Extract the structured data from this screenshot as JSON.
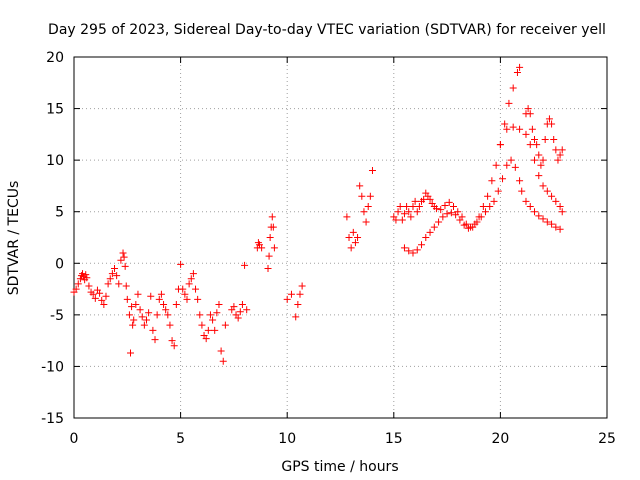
{
  "chart_data": {
    "type": "scatter",
    "title": "Day 295 of 2023, Sidereal Day-to-day VTEC variation (SDTVAR) for receiver yell",
    "xlabel": "GPS time / hours",
    "ylabel": "SDTVAR / TECUs",
    "xlim": [
      0,
      25
    ],
    "ylim": [
      -15,
      20
    ],
    "xticks": [
      0,
      5,
      10,
      15,
      20,
      25
    ],
    "yticks": [
      -15,
      -10,
      -5,
      0,
      5,
      10,
      15,
      20
    ],
    "grid": true,
    "marker": "plus",
    "color": "#ff0000",
    "series": [
      {
        "name": "SDTVAR",
        "x": [
          0.0,
          0.1,
          0.2,
          0.3,
          0.35,
          0.4,
          0.45,
          0.5,
          0.55,
          0.6,
          0.7,
          0.8,
          0.9,
          1.0,
          1.1,
          1.2,
          1.3,
          1.4,
          1.5,
          1.6,
          1.7,
          1.8,
          1.9,
          2.0,
          2.1,
          2.2,
          2.3,
          2.35,
          2.4,
          2.45,
          2.5,
          2.6,
          2.65,
          2.7,
          2.75,
          2.8,
          2.9,
          3.0,
          3.1,
          3.2,
          3.3,
          3.4,
          3.5,
          3.6,
          3.7,
          3.8,
          3.9,
          4.0,
          4.1,
          4.2,
          4.3,
          4.4,
          4.5,
          4.6,
          4.7,
          4.8,
          4.9,
          5.0,
          5.1,
          5.2,
          5.3,
          5.4,
          5.5,
          5.6,
          5.7,
          5.8,
          5.9,
          6.0,
          6.1,
          6.2,
          6.3,
          6.4,
          6.5,
          6.6,
          6.7,
          6.8,
          6.9,
          7.0,
          7.1,
          7.4,
          7.5,
          7.6,
          7.7,
          7.8,
          7.9,
          8.0,
          8.1,
          8.6,
          8.65,
          8.7,
          8.8,
          9.1,
          9.15,
          9.2,
          9.25,
          9.3,
          9.35,
          9.4,
          10.0,
          10.2,
          10.4,
          10.5,
          10.6,
          10.7,
          12.8,
          12.9,
          13.0,
          13.1,
          13.2,
          13.3,
          13.4,
          13.5,
          13.6,
          13.7,
          13.8,
          13.9,
          14.0,
          15.0,
          15.1,
          15.2,
          15.3,
          15.4,
          15.5,
          15.6,
          15.7,
          15.8,
          15.9,
          16.0,
          16.1,
          16.2,
          16.3,
          16.4,
          16.5,
          16.6,
          16.7,
          16.8,
          16.9,
          17.0,
          17.2,
          17.4,
          17.6,
          17.8,
          18.0,
          18.2,
          18.4,
          18.6,
          18.8,
          19.0,
          19.2,
          19.4,
          19.6,
          19.8,
          20.0,
          20.2,
          20.4,
          20.6,
          20.8,
          20.9,
          15.5,
          15.7,
          15.9,
          16.1,
          16.3,
          16.5,
          16.7,
          16.9,
          17.1,
          17.3,
          17.5,
          17.7,
          17.9,
          18.1,
          18.3,
          18.5,
          18.7,
          18.9,
          19.1,
          19.3,
          19.5,
          19.7,
          19.9,
          20.1,
          20.3,
          20.5,
          20.7,
          20.9,
          21.0,
          21.2,
          21.4,
          21.6,
          21.8,
          22.0,
          22.2,
          22.4,
          22.6,
          22.8,
          20.0,
          20.3,
          20.6,
          20.9,
          21.2,
          21.4,
          21.6,
          21.8,
          22.0,
          22.2,
          22.4,
          22.6,
          22.8,
          22.9,
          21.2,
          21.3,
          21.4,
          21.5,
          21.6,
          21.7,
          21.8,
          21.9,
          22.0,
          22.1,
          22.2,
          22.3,
          22.4,
          22.5,
          22.6,
          22.7,
          22.8,
          22.9
        ],
        "y": [
          -2.8,
          -2.5,
          -2.0,
          -1.5,
          -1.2,
          -1.0,
          -1.3,
          -1.6,
          -1.1,
          -1.4,
          -2.2,
          -2.8,
          -3.0,
          -3.4,
          -2.6,
          -2.9,
          -3.6,
          -4.0,
          -3.2,
          -2.0,
          -1.5,
          -1.0,
          -0.5,
          -1.2,
          -2.0,
          0.3,
          1.0,
          0.6,
          -0.3,
          -2.2,
          -3.5,
          -5.0,
          -8.7,
          -4.2,
          -6.0,
          -5.5,
          -4.0,
          -3.0,
          -4.5,
          -5.2,
          -6.0,
          -5.5,
          -4.8,
          -3.2,
          -6.5,
          -7.4,
          -5.0,
          -3.5,
          -3.0,
          -4.0,
          -4.5,
          -5.0,
          -6.0,
          -7.5,
          -8.0,
          -4.0,
          -2.5,
          -0.1,
          -2.5,
          -3.0,
          -3.5,
          -2.0,
          -1.5,
          -1.0,
          -2.5,
          -3.5,
          -5.0,
          -6.0,
          -7.0,
          -7.3,
          -6.5,
          -5.0,
          -5.5,
          -6.5,
          -4.8,
          -4.0,
          -8.5,
          -9.5,
          -6.0,
          -4.5,
          -4.2,
          -5.0,
          -5.3,
          -4.7,
          -4.0,
          -0.2,
          -4.5,
          1.5,
          2.0,
          1.8,
          1.5,
          -0.5,
          0.7,
          2.5,
          3.5,
          4.5,
          3.5,
          1.5,
          -3.5,
          -3.0,
          -5.2,
          -4.0,
          -3.0,
          -2.2,
          4.5,
          2.5,
          1.5,
          3.0,
          2.0,
          2.5,
          7.5,
          6.5,
          5.0,
          4.0,
          5.5,
          6.5,
          9.0,
          4.5,
          4.2,
          5.0,
          5.5,
          4.2,
          4.8,
          5.5,
          5.0,
          4.5,
          5.5,
          6.0,
          5.0,
          5.5,
          6.0,
          6.2,
          6.8,
          6.5,
          6.2,
          5.8,
          5.5,
          5.3,
          5.2,
          5.6,
          5.9,
          5.5,
          5.0,
          4.5,
          3.8,
          3.5,
          3.8,
          4.5,
          5.5,
          6.5,
          8.0,
          9.5,
          11.5,
          13.5,
          15.5,
          17.0,
          18.5,
          19.0,
          1.5,
          1.2,
          1.0,
          1.3,
          1.8,
          2.5,
          3.0,
          3.5,
          4.0,
          4.5,
          4.8,
          4.9,
          4.7,
          4.2,
          3.7,
          3.4,
          3.5,
          4.0,
          4.5,
          5.0,
          5.5,
          6.0,
          7.0,
          8.2,
          9.5,
          10.0,
          9.3,
          8.0,
          7.0,
          6.0,
          5.5,
          5.0,
          4.6,
          4.3,
          4.0,
          3.8,
          3.5,
          3.3,
          11.5,
          13.0,
          13.2,
          13.0,
          12.5,
          11.5,
          10.0,
          8.5,
          7.5,
          7.0,
          6.5,
          6.0,
          5.5,
          5.0,
          14.5,
          15.0,
          14.5,
          13.0,
          12.0,
          11.5,
          10.5,
          9.5,
          10.0,
          12.0,
          13.5,
          14.0,
          13.5,
          12.0,
          11.0,
          10.0,
          10.5,
          11.0
        ]
      }
    ]
  }
}
